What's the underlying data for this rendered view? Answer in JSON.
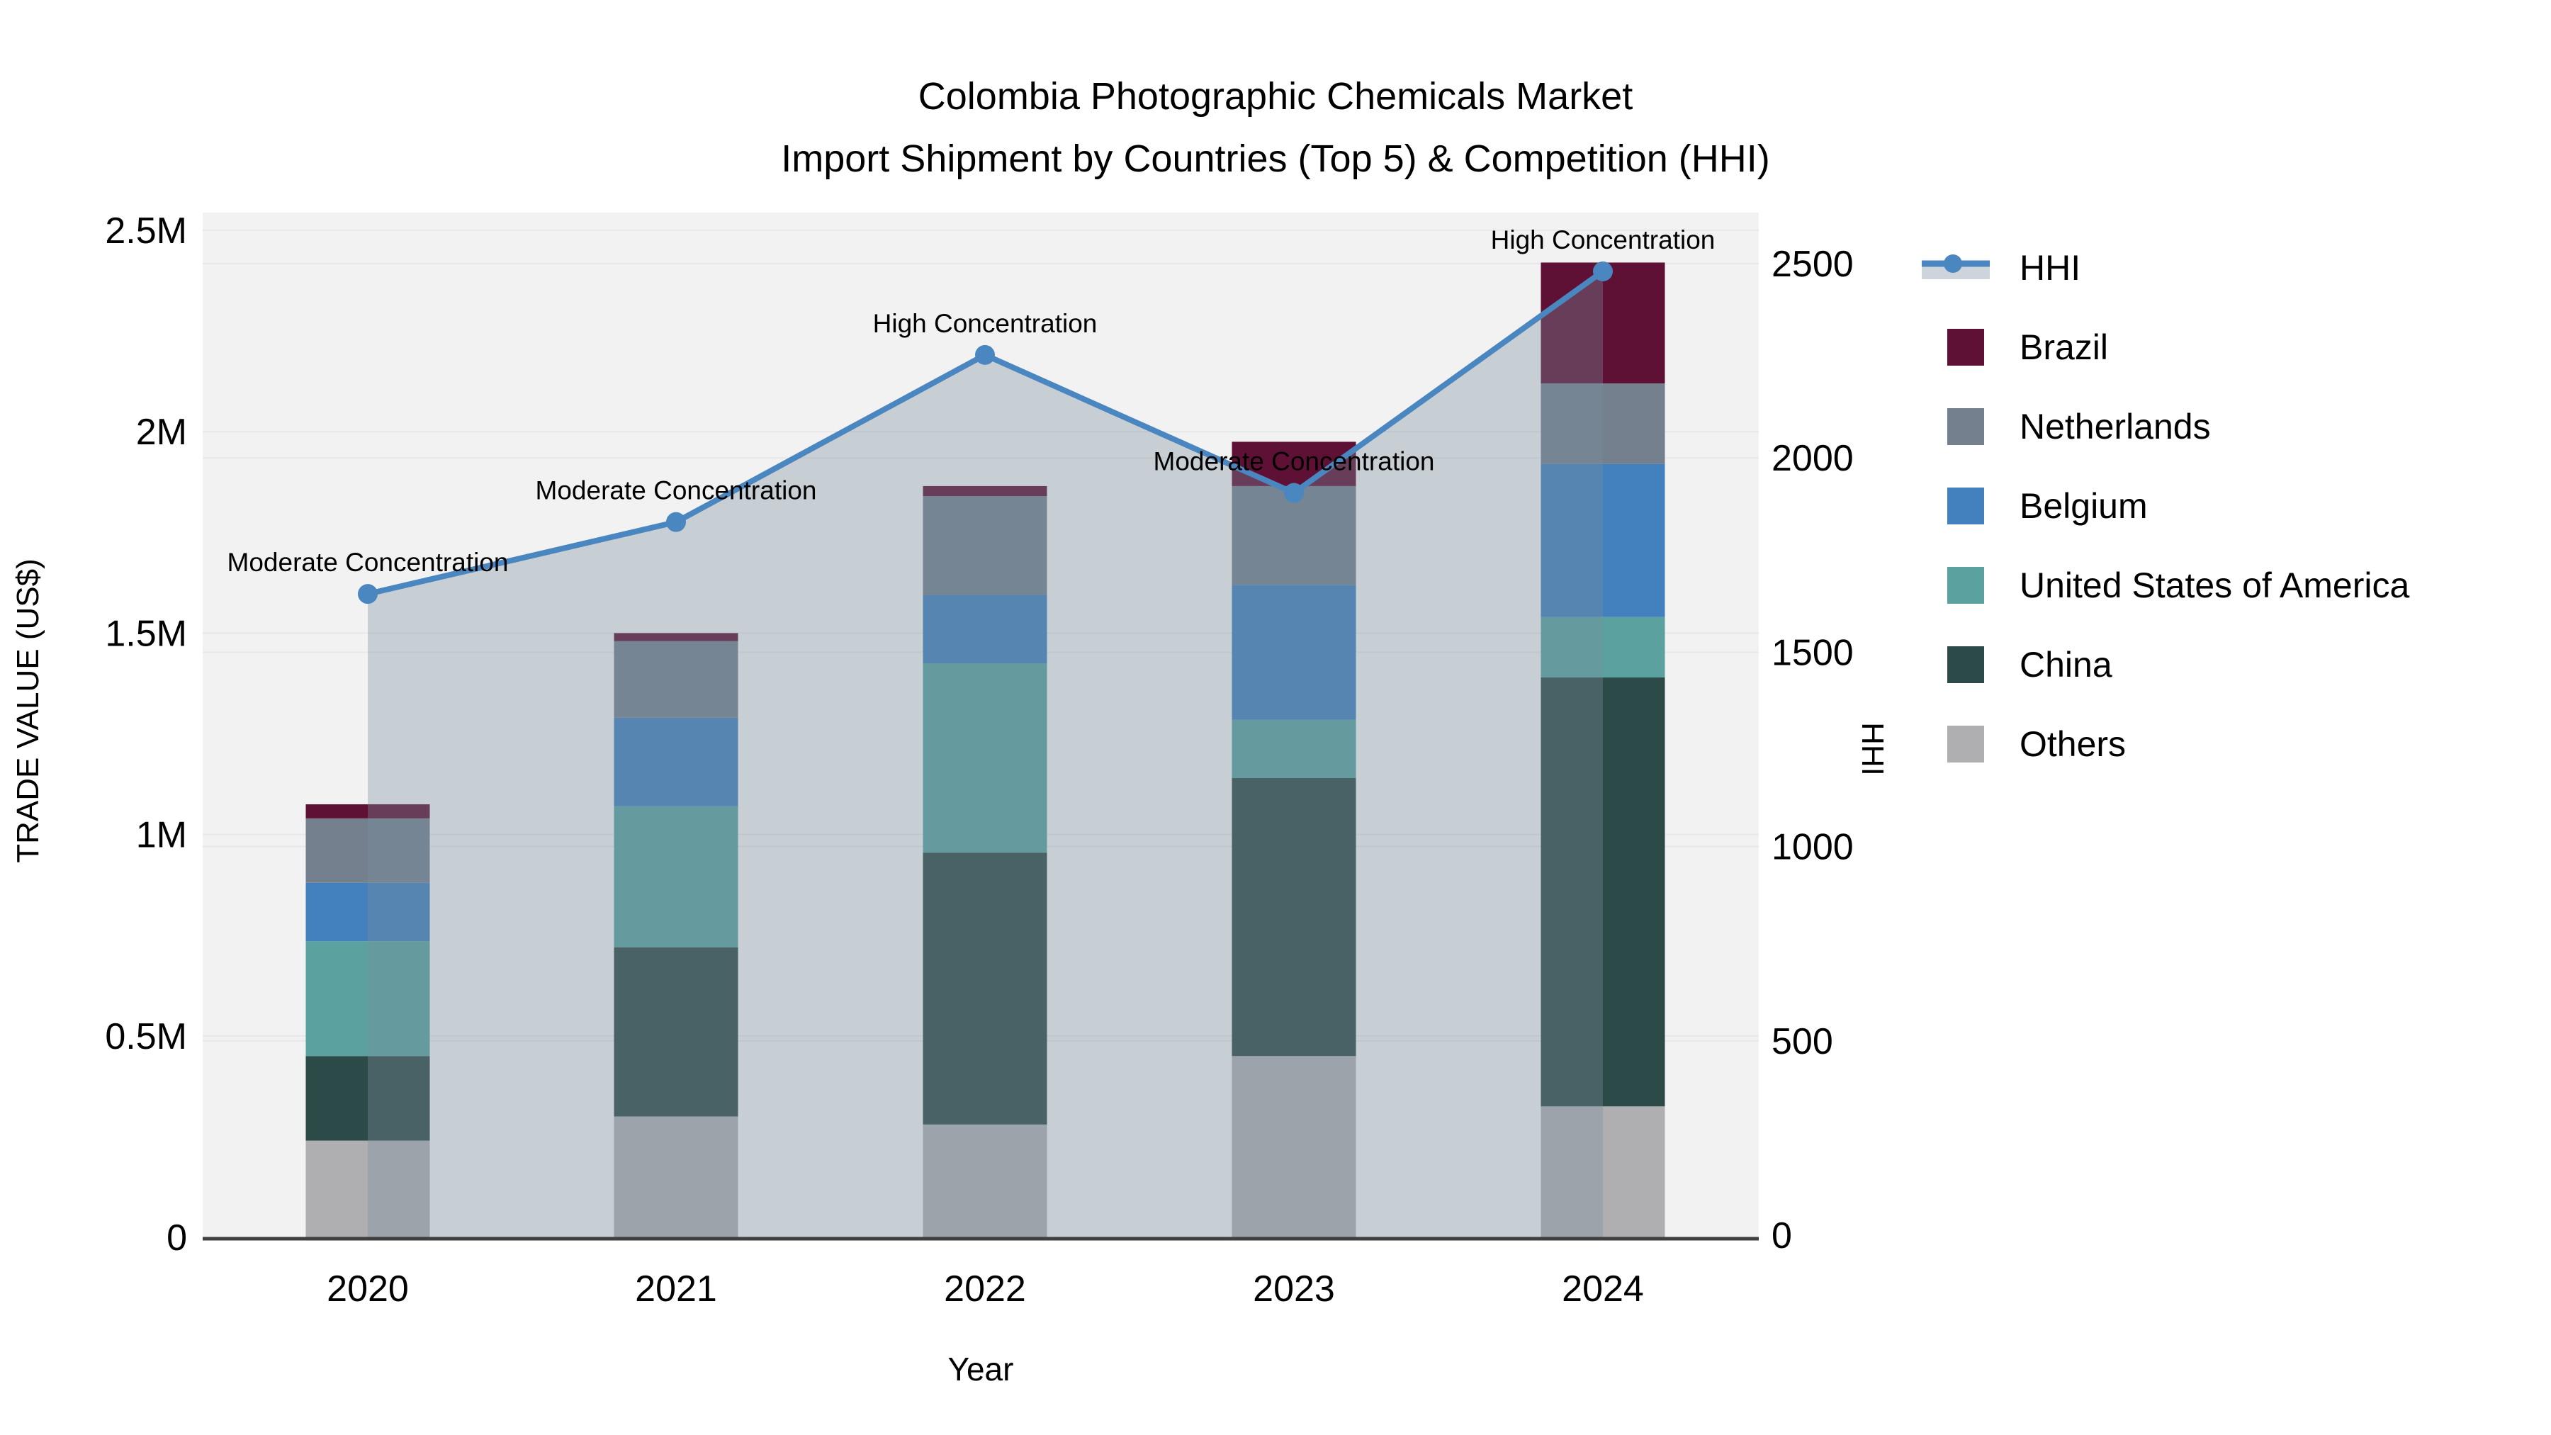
{
  "title": {
    "line1": "Colombia Photographic Chemicals Market",
    "line2": "Import Shipment by Countries (Top 5) & Competition (HHI)"
  },
  "axes": {
    "left_title": "TRADE VALUE (US$)",
    "right_title": "HHI",
    "x_title": "Year"
  },
  "chart_data": {
    "type": "stacked-bar+line",
    "categories": [
      "2020",
      "2021",
      "2022",
      "2023",
      "2024"
    ],
    "xlabel": "Year",
    "ylabel_left": "TRADE VALUE (US$)",
    "ylabel_right": "HHI",
    "ylim_left": [
      0,
      2500000
    ],
    "ylim_right": [
      0,
      2500
    ],
    "grid": true,
    "legend_position": "right",
    "bar_series_bottom_to_top": [
      {
        "name": "Others",
        "color": "#AFAFB1",
        "values": [
          240000,
          300000,
          280000,
          450000,
          325000
        ]
      },
      {
        "name": "China",
        "color": "#2C4A47",
        "values": [
          210000,
          420000,
          675000,
          690000,
          1065000
        ]
      },
      {
        "name": "United States of America",
        "color": "#5AA1A0",
        "values": [
          285000,
          350000,
          470000,
          145000,
          150000
        ]
      },
      {
        "name": "Belgium",
        "color": "#4281BD",
        "values": [
          145000,
          220000,
          170000,
          335000,
          380000
        ]
      },
      {
        "name": "Netherlands",
        "color": "#74808E",
        "values": [
          160000,
          190000,
          245000,
          245000,
          200000
        ]
      },
      {
        "name": "Brazil",
        "color": "#5F1135",
        "values": [
          35000,
          20000,
          25000,
          110000,
          300000
        ]
      }
    ],
    "line_series": {
      "name": "HHI",
      "color": "#4A86BF",
      "area_fill": "rgba(122,142,158,0.36)",
      "values": [
        1650,
        1835,
        2265,
        1910,
        2480
      ]
    },
    "annotations": [
      {
        "category": "2020",
        "text": "Moderate Concentration"
      },
      {
        "category": "2021",
        "text": "Moderate Concentration"
      },
      {
        "category": "2022",
        "text": "High Concentration"
      },
      {
        "category": "2023",
        "text": "Moderate Concentration"
      },
      {
        "category": "2024",
        "text": "High Concentration"
      }
    ],
    "y_left_ticks": [
      {
        "label": "0",
        "value": 0
      },
      {
        "label": "0.5M",
        "value": 500000
      },
      {
        "label": "1M",
        "value": 1000000
      },
      {
        "label": "1.5M",
        "value": 1500000
      },
      {
        "label": "2M",
        "value": 2000000
      },
      {
        "label": "2.5M",
        "value": 2500000
      }
    ],
    "y_right_ticks": [
      {
        "label": "0",
        "value": 0
      },
      {
        "label": "500",
        "value": 500
      },
      {
        "label": "1000",
        "value": 1000
      },
      {
        "label": "1500",
        "value": 1500
      },
      {
        "label": "2000",
        "value": 2000
      },
      {
        "label": "2500",
        "value": 2500
      }
    ],
    "legend": [
      {
        "label": "HHI",
        "type": "line",
        "color": "#4A86BF",
        "band": "#CDD4DB"
      },
      {
        "label": "Brazil",
        "type": "square",
        "color": "#5F1135"
      },
      {
        "label": "Netherlands",
        "type": "square",
        "color": "#74808E"
      },
      {
        "label": "Belgium",
        "type": "square",
        "color": "#4281BD"
      },
      {
        "label": "United States of America",
        "type": "square",
        "color": "#5AA1A0"
      },
      {
        "label": "China",
        "type": "square",
        "color": "#2C4A47"
      },
      {
        "label": "Others",
        "type": "square",
        "color": "#AFAFB1"
      }
    ],
    "style": {
      "plot_bg": "#F2F2F3",
      "grid_color": "#E7E8EA",
      "axis_line_color": "#3F3F3F"
    }
  }
}
